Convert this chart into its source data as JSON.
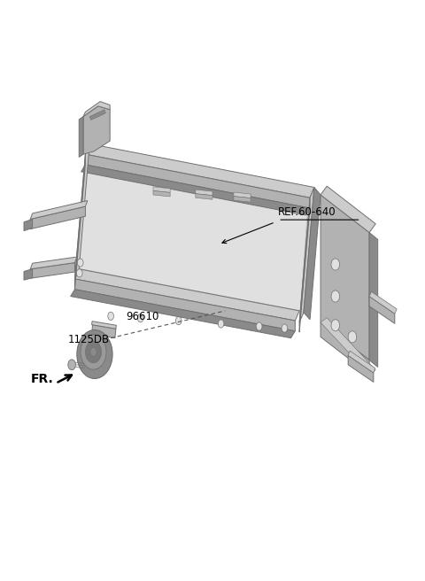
{
  "bg_color": "#ffffff",
  "fig_width": 4.8,
  "fig_height": 6.56,
  "dpi": 100,
  "ref_label": "REF.60-640",
  "part_96610_label": "96610",
  "part_1125DB_label": "1125DB",
  "fr_label": "FR.",
  "text_color": "#000000",
  "label_fontsize": 8.5,
  "fr_fontsize": 10,
  "gray_main": "#b2b2b2",
  "gray_dark": "#8a8a8a",
  "gray_light": "#cccccc",
  "gray_edge": "#707070",
  "gray_inner": "#e0e0e0"
}
